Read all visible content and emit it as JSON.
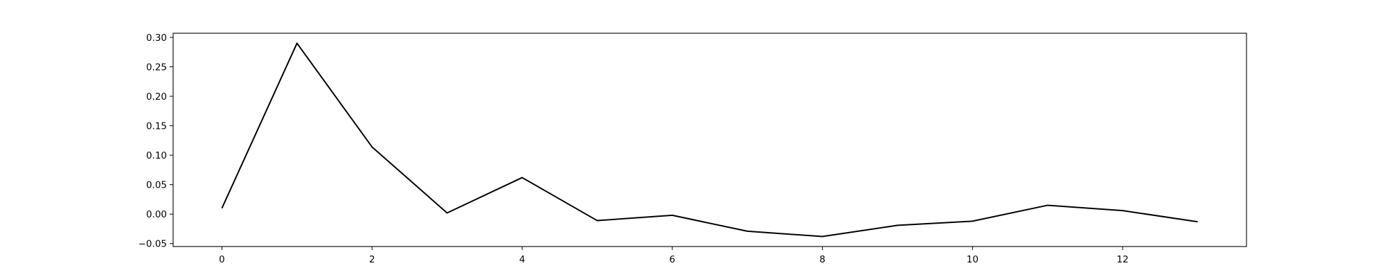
{
  "chart_data": {
    "type": "line",
    "title": "",
    "xlabel": "",
    "ylabel": "",
    "xlim": [
      -0.65,
      13.65
    ],
    "ylim": [
      -0.055,
      0.307
    ],
    "x": [
      0,
      1,
      2,
      3,
      4,
      5,
      6,
      7,
      8,
      9,
      10,
      11,
      12,
      13
    ],
    "series": [
      {
        "values": [
          0.01,
          0.29,
          0.114,
          0.002,
          0.062,
          -0.011,
          -0.002,
          -0.029,
          -0.038,
          -0.019,
          -0.012,
          0.015,
          0.006,
          -0.013
        ],
        "color": "#000000"
      }
    ],
    "xticks": [
      0,
      2,
      4,
      6,
      8,
      10,
      12
    ],
    "xtick_labels": [
      "0",
      "2",
      "4",
      "6",
      "8",
      "10",
      "12"
    ],
    "yticks": [
      -0.05,
      0.0,
      0.05,
      0.1,
      0.15,
      0.2,
      0.25,
      0.3
    ],
    "ytick_labels": [
      "−0.05",
      "0.00",
      "0.05",
      "0.10",
      "0.15",
      "0.20",
      "0.25",
      "0.30"
    ],
    "grid": false,
    "legend": "none"
  }
}
